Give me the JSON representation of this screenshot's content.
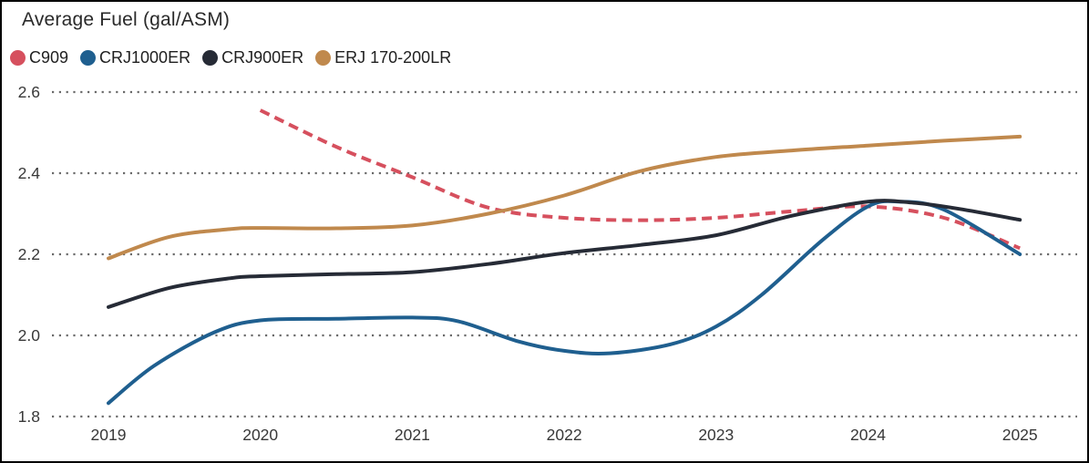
{
  "title": "Average Fuel (gal/ASM)",
  "chart_data": {
    "type": "line",
    "title": "Average Fuel (gal/ASM)",
    "xlabel": "",
    "ylabel": "",
    "ylim": [
      1.8,
      2.6
    ],
    "xlim": [
      2019,
      2025
    ],
    "y_ticks": [
      "2.6",
      "2.4",
      "2.2",
      "2.0",
      "1.8"
    ],
    "y_tick_values": [
      2.6,
      2.4,
      2.2,
      2.0,
      1.8
    ],
    "x_ticks": [
      "2019",
      "2020",
      "2021",
      "2022",
      "2023",
      "2024",
      "2025"
    ],
    "x_tick_values": [
      2019,
      2020,
      2021,
      2022,
      2023,
      2024,
      2025
    ],
    "grid": "horizontal-dotted",
    "grid_color": "#6a6a6a",
    "axis_text_color": "#383838",
    "legend_position": "top-left",
    "series": [
      {
        "name": "C909",
        "color": "#d6505e",
        "line_style": "dashed",
        "points": [
          [
            2020,
            2.555
          ],
          [
            2020.5,
            2.465
          ],
          [
            2021,
            2.39
          ],
          [
            2021.5,
            2.315
          ],
          [
            2022,
            2.29
          ],
          [
            2022.5,
            2.284
          ],
          [
            2023,
            2.29
          ],
          [
            2023.5,
            2.306
          ],
          [
            2024,
            2.318
          ],
          [
            2024.5,
            2.29
          ],
          [
            2025,
            2.215
          ]
        ]
      },
      {
        "name": "CRJ1000ER",
        "color": "#1f5f8f",
        "line_style": "solid",
        "points": [
          [
            2019,
            1.833
          ],
          [
            2019.3,
            1.925
          ],
          [
            2019.7,
            2.008
          ],
          [
            2020,
            2.037
          ],
          [
            2020.5,
            2.041
          ],
          [
            2021,
            2.044
          ],
          [
            2021.3,
            2.035
          ],
          [
            2021.7,
            1.985
          ],
          [
            2022,
            1.962
          ],
          [
            2022.3,
            1.956
          ],
          [
            2022.7,
            1.978
          ],
          [
            2023,
            2.022
          ],
          [
            2023.3,
            2.1
          ],
          [
            2023.7,
            2.235
          ],
          [
            2024,
            2.318
          ],
          [
            2024.2,
            2.33
          ],
          [
            2024.5,
            2.31
          ],
          [
            2025,
            2.2
          ]
        ]
      },
      {
        "name": "CRJ900ER",
        "color": "#262b36",
        "line_style": "solid",
        "points": [
          [
            2019,
            2.07
          ],
          [
            2019.4,
            2.117
          ],
          [
            2019.8,
            2.141
          ],
          [
            2020,
            2.146
          ],
          [
            2020.5,
            2.151
          ],
          [
            2021,
            2.156
          ],
          [
            2021.5,
            2.176
          ],
          [
            2022,
            2.203
          ],
          [
            2022.5,
            2.223
          ],
          [
            2023,
            2.247
          ],
          [
            2023.5,
            2.295
          ],
          [
            2024,
            2.33
          ],
          [
            2024.3,
            2.327
          ],
          [
            2024.6,
            2.312
          ],
          [
            2025,
            2.285
          ]
        ]
      },
      {
        "name": "ERJ 170-200LR",
        "color": "#c0894d",
        "line_style": "solid",
        "points": [
          [
            2019,
            2.19
          ],
          [
            2019.4,
            2.243
          ],
          [
            2019.8,
            2.262
          ],
          [
            2020,
            2.265
          ],
          [
            2020.5,
            2.264
          ],
          [
            2021,
            2.271
          ],
          [
            2021.5,
            2.3
          ],
          [
            2022,
            2.345
          ],
          [
            2022.5,
            2.405
          ],
          [
            2023,
            2.44
          ],
          [
            2023.5,
            2.456
          ],
          [
            2024,
            2.468
          ],
          [
            2024.5,
            2.48
          ],
          [
            2025,
            2.49
          ]
        ]
      }
    ]
  }
}
